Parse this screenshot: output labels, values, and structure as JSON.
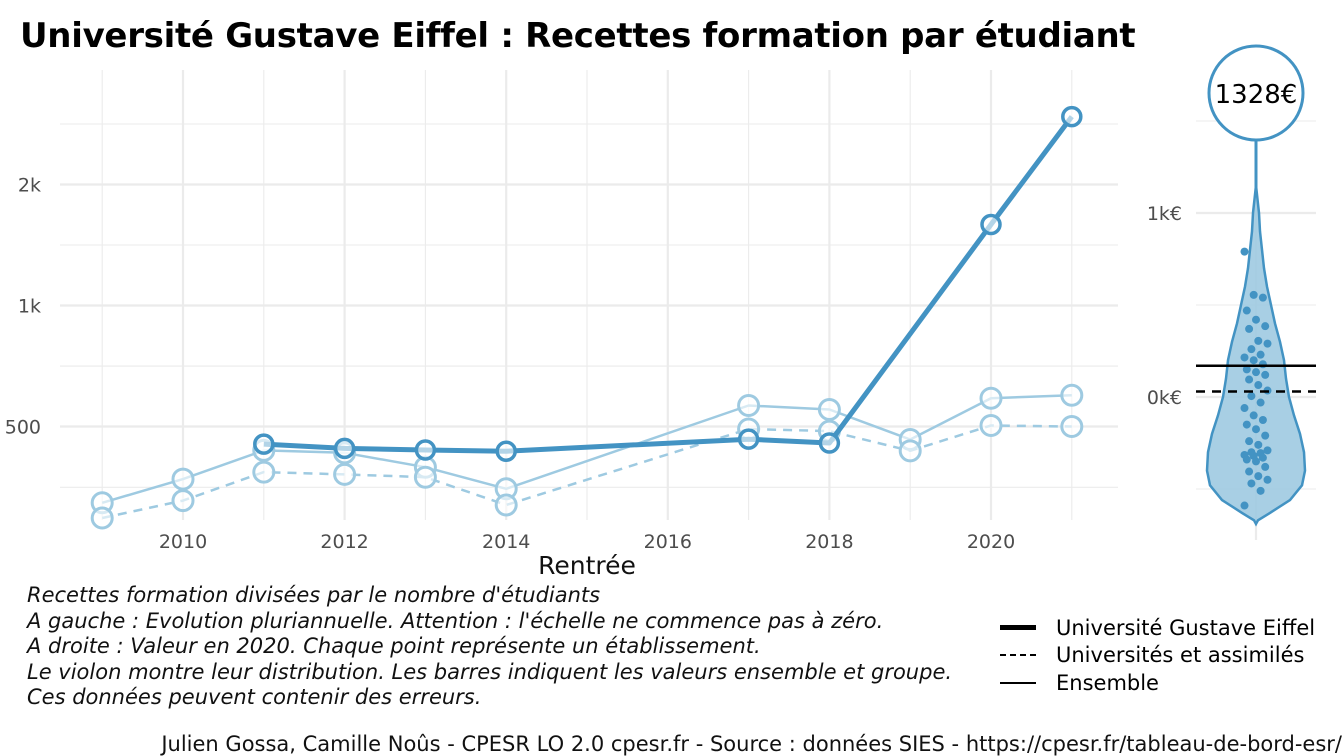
{
  "title": "Université Gustave Eiffel  :  Recettes formation par étudiant",
  "chart_data": [
    {
      "type": "line",
      "panel": "left",
      "xlabel": "Rentrée",
      "ylabel": "",
      "y_scale": "log",
      "x_ticks": [
        "2010",
        "2012",
        "2014",
        "2016",
        "2018",
        "2020"
      ],
      "y_ticks": [
        "500",
        "1k",
        "2k"
      ],
      "xlim": [
        2008.8,
        2021.4
      ],
      "ylim": [
        250,
        3500
      ],
      "series": [
        {
          "name": "Université Gustave Eiffel",
          "style": "solid-bold",
          "color": "#4393c3",
          "points": [
            [
              2011,
              452
            ],
            [
              2012,
              441
            ],
            [
              2013,
              437
            ],
            [
              2014,
              434
            ],
            [
              2017,
              465
            ],
            [
              2018,
              455
            ],
            [
              2020,
              1590
            ],
            [
              2021,
              2950
            ]
          ]
        },
        {
          "name": "Universités et assimilés",
          "style": "dashed",
          "color": "#9ecae1",
          "points": [
            [
              2009,
              296
            ],
            [
              2010,
              327
            ],
            [
              2011,
              385
            ],
            [
              2012,
              380
            ],
            [
              2013,
              374
            ],
            [
              2014,
              319
            ],
            [
              2017,
              493
            ],
            [
              2018,
              487
            ],
            [
              2019,
              435
            ],
            [
              2020,
              503
            ],
            [
              2021,
              500
            ]
          ]
        },
        {
          "name": "Ensemble",
          "style": "solid-thin",
          "color": "#9ecae1",
          "points": [
            [
              2009,
              323
            ],
            [
              2010,
              370
            ],
            [
              2011,
              436
            ],
            [
              2012,
              430
            ],
            [
              2013,
              396
            ],
            [
              2014,
              350
            ],
            [
              2017,
              564
            ],
            [
              2018,
              551
            ],
            [
              2019,
              464
            ],
            [
              2020,
              588
            ],
            [
              2021,
              598
            ]
          ]
        }
      ]
    },
    {
      "type": "violin",
      "panel": "right",
      "y_ticks": [
        "0k€",
        "1k€"
      ],
      "highlight_label": "1328€",
      "highlight_value": 1328,
      "ensemble_line": 170,
      "group_line": 30,
      "points": [
        790,
        555,
        540,
        470,
        420,
        385,
        370,
        305,
        290,
        260,
        230,
        215,
        200,
        178,
        150,
        135,
        120,
        95,
        65,
        35,
        5,
        -30,
        -60,
        -100,
        -125,
        -150,
        -175,
        -210,
        -240,
        -260,
        -290,
        -300,
        -305,
        -315,
        -320,
        -330,
        -340,
        -350,
        -380,
        -405,
        -430,
        -450,
        -470,
        -510,
        -590
      ]
    }
  ],
  "caption": [
    "Recettes formation divisées par le nombre d'étudiants",
    "A gauche : Evolution pluriannuelle. Attention : l'échelle ne commence pas à zéro.",
    "A droite : Valeur en 2020. Chaque point représente un établissement.",
    "Le violon montre leur distribution. Les barres indiquent les valeurs ensemble et groupe.",
    "Ces données peuvent contenir des erreurs."
  ],
  "legend": [
    {
      "label": "Université Gustave Eiffel",
      "style": "bold"
    },
    {
      "label": "Universités et assimilés",
      "style": "dashed"
    },
    {
      "label": "Ensemble",
      "style": "solid"
    }
  ],
  "footer": "Julien Gossa, Camille Noûs - CPESR LO 2.0 cpesr.fr - Source : données SIES - https://cpesr.fr/tableau-de-bord-esr/"
}
